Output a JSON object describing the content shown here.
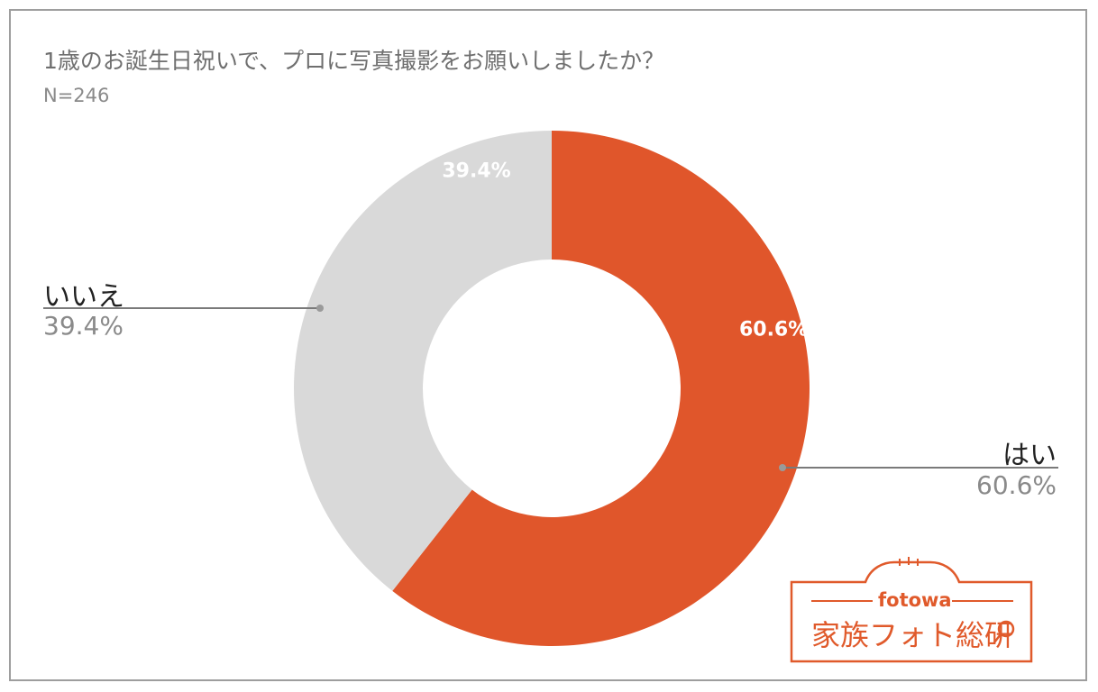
{
  "title": "1歳のお誕生日祝いで、プロに写真撮影をお願いしましたか？",
  "subtitle": "N=246",
  "chart_data": {
    "type": "pie",
    "donut": true,
    "start_angle_deg": 0,
    "direction": "clockwise",
    "slices": [
      {
        "label": "はい",
        "value": 60.6,
        "display": "60.6%",
        "color": "#e0562b"
      },
      {
        "label": "いいえ",
        "value": 39.4,
        "display": "39.4%",
        "color": "#d9d9d9"
      }
    ]
  },
  "legend": {
    "yes": {
      "name": "はい",
      "pct": "60.6%"
    },
    "no": {
      "name": "いいえ",
      "pct": "39.4%"
    }
  },
  "logo": {
    "brand": "fotowa",
    "name": "家族フォト総研",
    "color": "#e05a2b"
  }
}
